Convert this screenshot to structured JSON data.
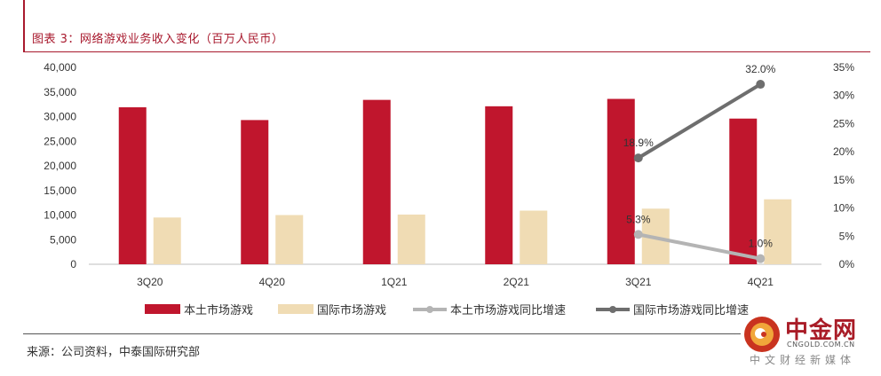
{
  "header": {
    "title": "图表 3：网络游戏业务收入变化（百万人民币）"
  },
  "source": {
    "text": "来源：公司资料，中泰国际研究部"
  },
  "watermark": {
    "name": "中金网",
    "url": "CNGOLD.COM.CN",
    "tagline": "中文财经新媒体"
  },
  "colors": {
    "accent": "#a8192d",
    "domestic_bar": "#c0162d",
    "intl_bar": "#f0dcb4",
    "domestic_line": "#b4b4b4",
    "intl_line": "#6e6e6e"
  },
  "chart_data": {
    "type": "bar",
    "categories": [
      "3Q20",
      "4Q20",
      "1Q21",
      "2Q21",
      "3Q21",
      "4Q21"
    ],
    "series": [
      {
        "name": "本土市场游戏",
        "type": "bar",
        "axis": "left",
        "values": [
          31900,
          29300,
          33400,
          32100,
          33600,
          29600
        ]
      },
      {
        "name": "国际市场游戏",
        "type": "bar",
        "axis": "left",
        "values": [
          9500,
          10000,
          10100,
          10900,
          11300,
          13200
        ]
      },
      {
        "name": "本土市场游戏同比增速",
        "type": "line",
        "axis": "right",
        "x": [
          "3Q21",
          "4Q21"
        ],
        "values": [
          5.3,
          1.0
        ],
        "labels": [
          "5.3%",
          "1.0%"
        ]
      },
      {
        "name": "国际市场游戏同比增速",
        "type": "line",
        "axis": "right",
        "x": [
          "3Q21",
          "4Q21"
        ],
        "values": [
          18.9,
          32.0
        ],
        "labels": [
          "18.9%",
          "32.0%"
        ]
      }
    ],
    "y_left": {
      "min": 0,
      "max": 40000,
      "step": 5000,
      "tick_labels": [
        "0",
        "5,000",
        "10,000",
        "15,000",
        "20,000",
        "25,000",
        "30,000",
        "35,000",
        "40,000"
      ]
    },
    "y_right": {
      "min": 0,
      "max": 35,
      "step": 5,
      "tick_labels": [
        "0%",
        "5%",
        "10%",
        "15%",
        "20%",
        "25%",
        "30%",
        "35%"
      ]
    },
    "legend_position": "bottom",
    "grid": false
  }
}
